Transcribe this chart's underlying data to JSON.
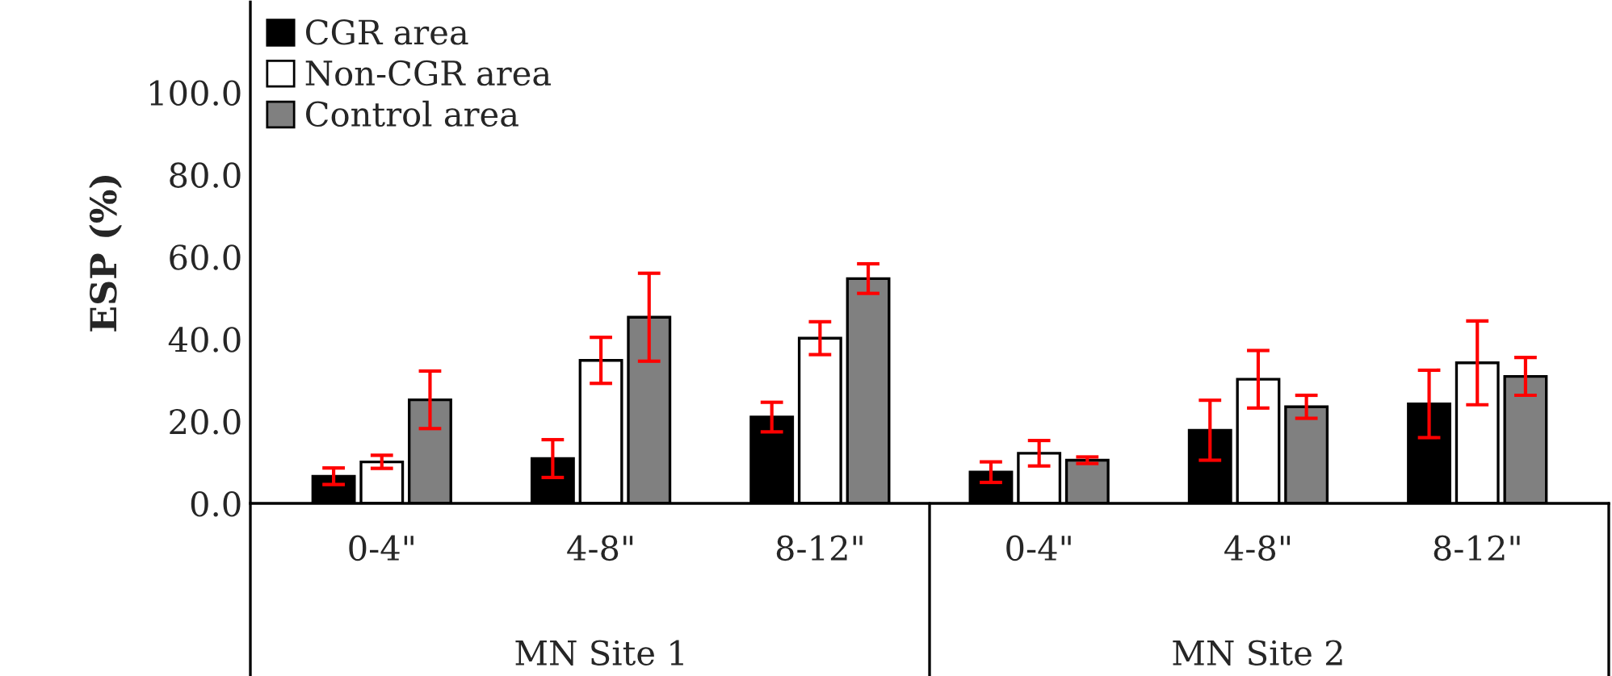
{
  "chart_data": {
    "type": "bar",
    "ylabel": "ESP (%)",
    "categories": [
      "0-4\"",
      "4-8\"",
      "8-12\"",
      "0-4\"",
      "4-8\"",
      "8-12\""
    ],
    "series": [
      {
        "name": "CGR area",
        "color": "#000000",
        "values": [
          6.6,
          10.9,
          21.0,
          7.6,
          17.8,
          24.2
        ],
        "errors": [
          2.0,
          4.6,
          3.6,
          2.5,
          7.3,
          8.2
        ]
      },
      {
        "name": "Non-CGR area",
        "color": "#ffffff",
        "values": [
          10.1,
          34.8,
          40.2,
          12.2,
          30.2,
          34.2
        ],
        "errors": [
          1.6,
          5.6,
          4.0,
          3.1,
          7.0,
          10.2
        ]
      },
      {
        "name": "Control area",
        "color": "#808080",
        "values": [
          25.2,
          45.3,
          54.7,
          10.5,
          23.5,
          30.9
        ],
        "errors": [
          7.0,
          10.7,
          3.6,
          0.8,
          2.8,
          4.6
        ]
      }
    ],
    "ylim": [
      0,
      122
    ],
    "yticks": [
      {
        "value": 0,
        "label": "0.0"
      },
      {
        "value": 20,
        "label": "20.0"
      },
      {
        "value": 40,
        "label": "40.0"
      },
      {
        "value": 60,
        "label": "60.0"
      },
      {
        "value": 80,
        "label": "80.0"
      },
      {
        "value": 100,
        "label": "100.0"
      }
    ],
    "annotations": [
      "MN Site 1",
      "MN Site 2"
    ],
    "legend": "top left",
    "grid": false
  }
}
